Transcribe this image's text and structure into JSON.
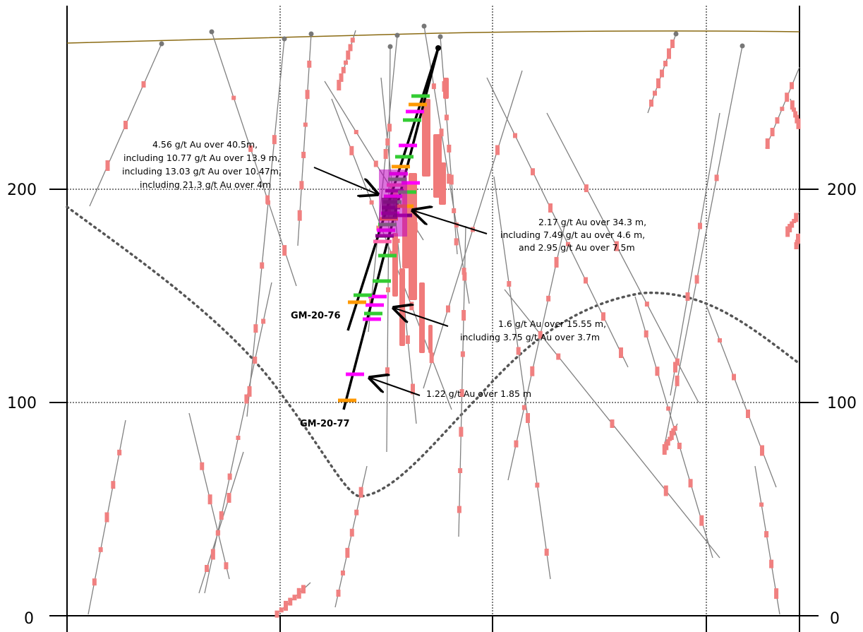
{
  "axis": {
    "left_ticks": [
      "200",
      "100",
      "0"
    ],
    "right_ticks": [
      "200",
      "100",
      "0"
    ]
  },
  "holes": {
    "hole_76": "GM-20-76",
    "hole_77": "GM-20-77"
  },
  "annotations": {
    "a1": [
      "4.56 g/t Au over 40.5m,",
      "including 10.77 g/t Au over 13.9 m,",
      "including 13.03 g/t Au over 10.47m,",
      "including 21.3 g/t Au over 4m"
    ],
    "a2": [
      "2.17 g/t Au over 34.3 m,",
      "including 7.49 g/t au over 4.6 m,",
      "and 2.95 g/t Au over 7.5m"
    ],
    "a3": [
      "1.6 g/t Au over 15.55 m,",
      "including 3.75 g/t Au over 3.7m"
    ],
    "a4": [
      "1.22 g/t Au over 1.85 m"
    ]
  },
  "colors": {
    "topography": "#8a6a12",
    "old_hole": "#808080",
    "old_assay": "#f08080",
    "new_hole": "#000000",
    "contact": "#555555",
    "assay_magenta": "#ff00ff",
    "assay_green": "#33cc33",
    "assay_orange": "#ff9900",
    "assay_purple": "#800080",
    "assay_pink": "#ff66aa"
  }
}
